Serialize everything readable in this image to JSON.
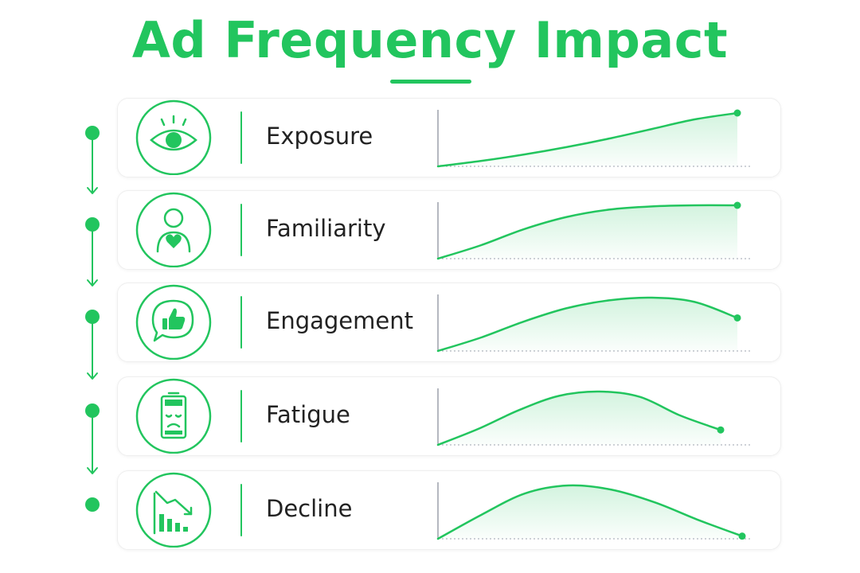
{
  "title": "Ad Frequency Impact",
  "colors": {
    "accent": "#22c55e",
    "text": "#222222",
    "card_border": "#efefef"
  },
  "stages": [
    {
      "label": "Exposure",
      "icon": "eye-icon",
      "curve": [
        0.0,
        0.1,
        0.22,
        0.36,
        0.52,
        0.7,
        0.88,
        1.0
      ]
    },
    {
      "label": "Familiarity",
      "icon": "person-heart-icon",
      "curve": [
        0.0,
        0.25,
        0.55,
        0.78,
        0.92,
        0.98,
        1.0,
        1.0
      ]
    },
    {
      "label": "Engagement",
      "icon": "thumbs-up-speech-bubble-icon",
      "curve": [
        0.0,
        0.25,
        0.55,
        0.8,
        0.95,
        1.0,
        0.92,
        0.62
      ]
    },
    {
      "label": "Fatigue",
      "icon": "low-battery-sad-face-icon",
      "curve": [
        0.0,
        0.3,
        0.65,
        0.92,
        1.0,
        0.9,
        0.55,
        0.28
      ]
    },
    {
      "label": "Decline",
      "icon": "declining-bar-chart-icon",
      "curve": [
        0.0,
        0.45,
        0.85,
        1.0,
        0.92,
        0.68,
        0.35,
        0.05
      ]
    }
  ]
}
